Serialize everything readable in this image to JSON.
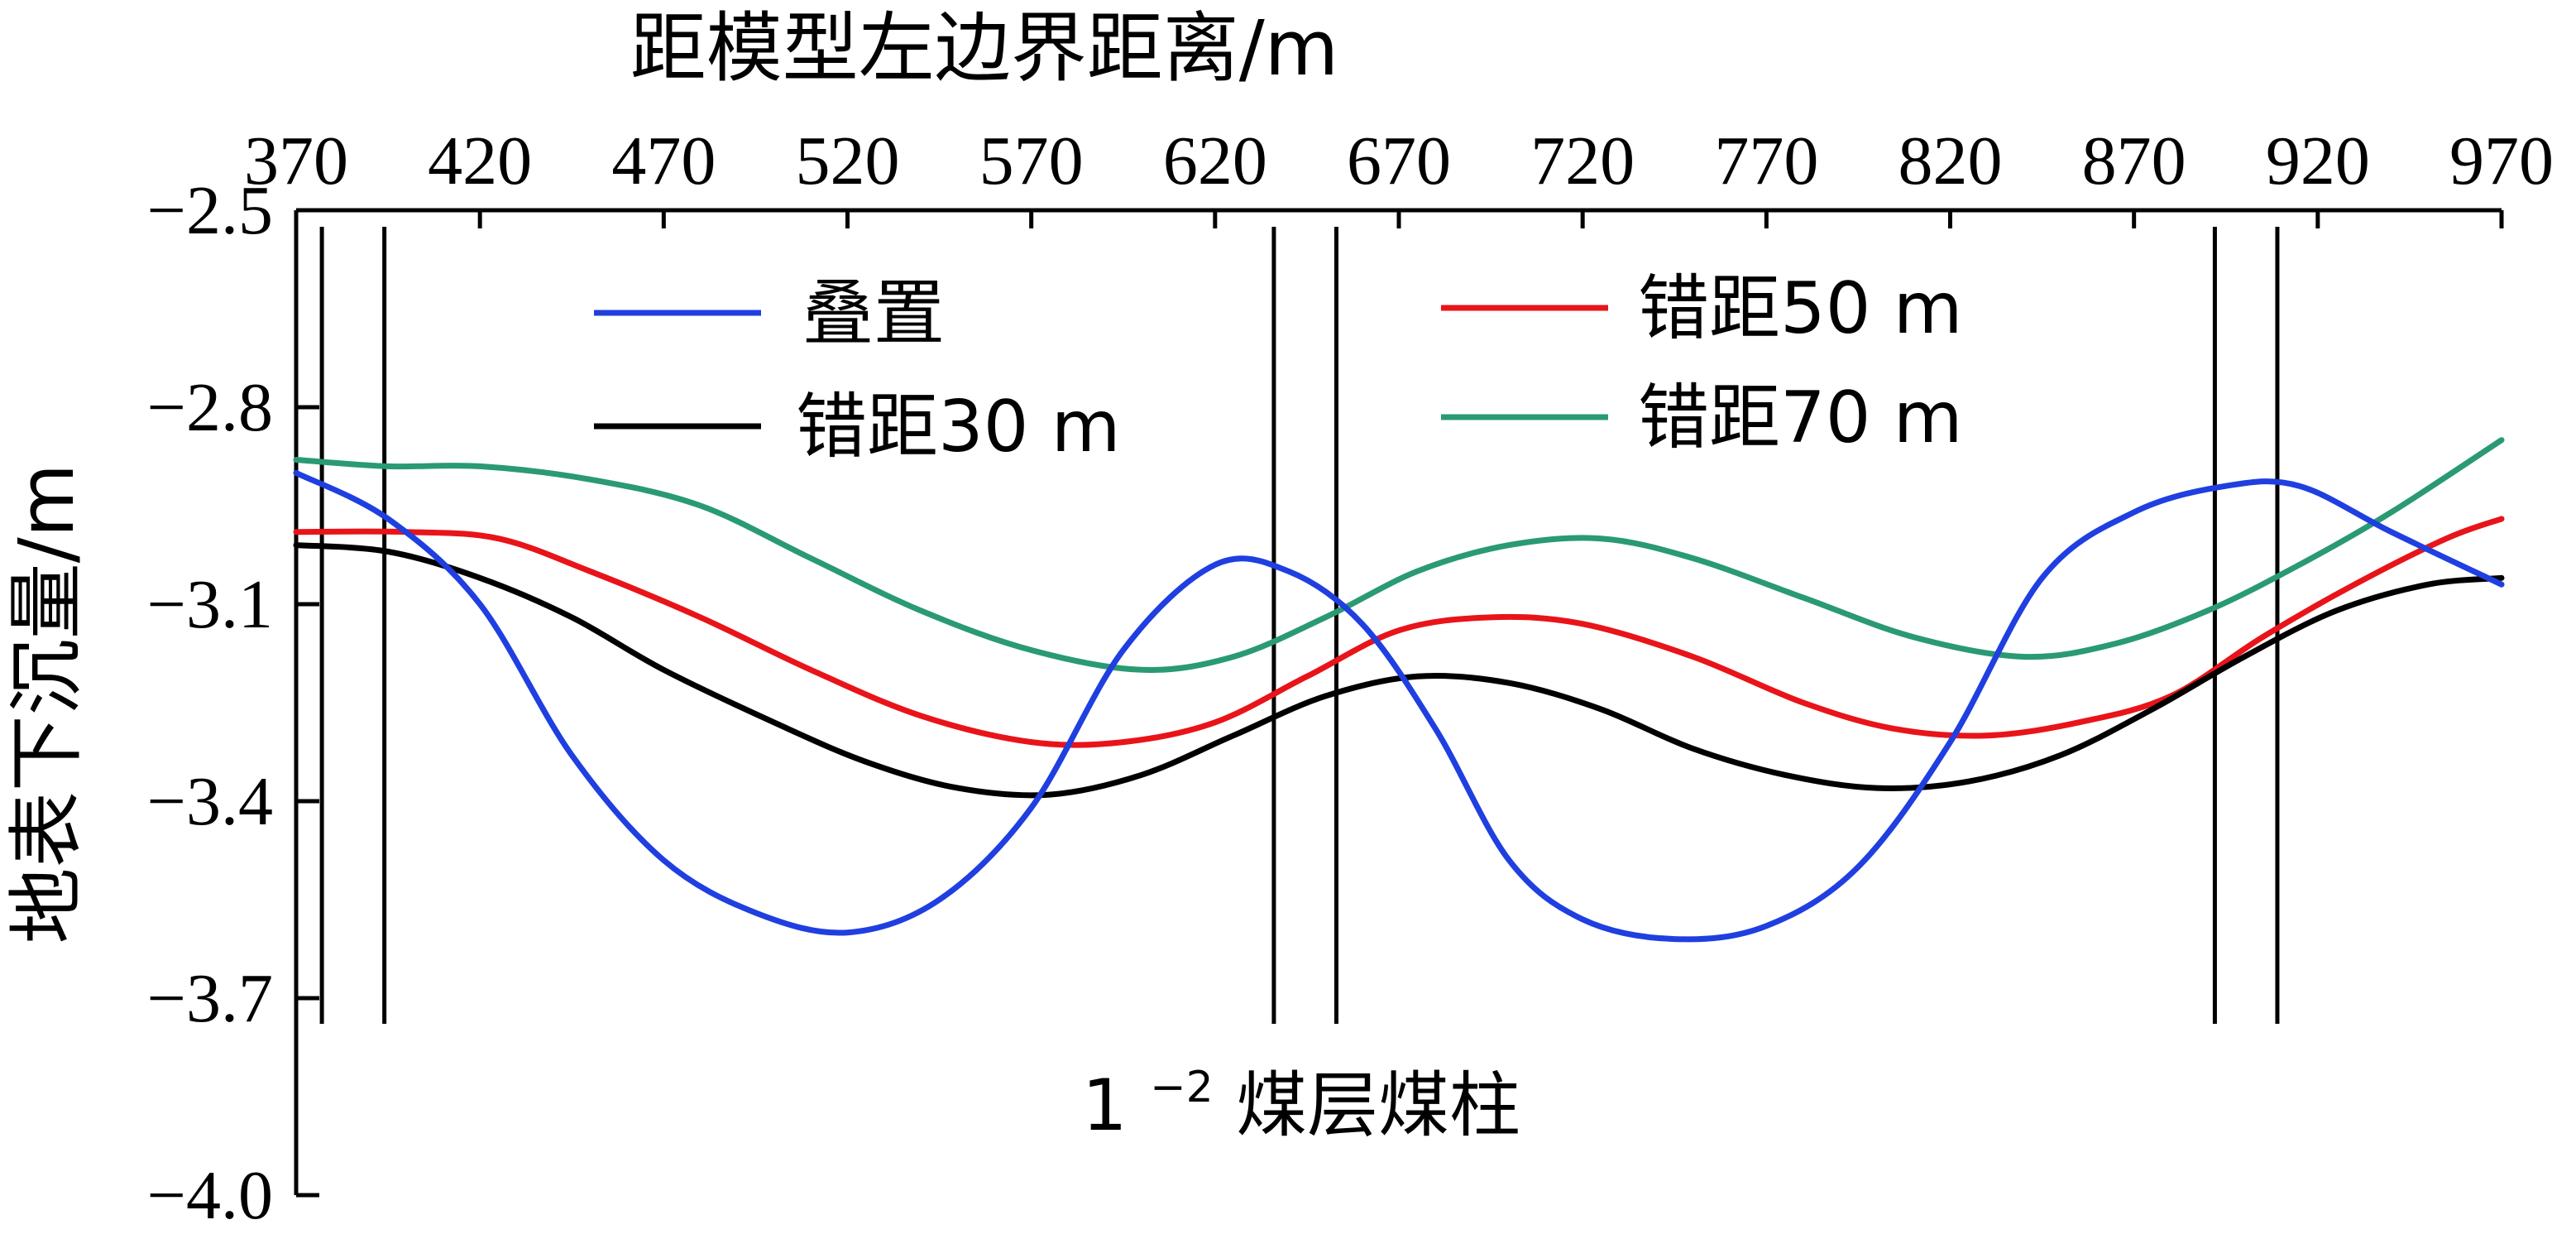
{
  "chart_data": {
    "type": "line",
    "xlabel": "距模型左边界距离/m",
    "ylabel": "地表下沉量/m",
    "xlim": [
      370,
      970
    ],
    "ylim": [
      -4.0,
      -2.5
    ],
    "x_ticks": [
      370,
      420,
      470,
      520,
      570,
      620,
      670,
      720,
      770,
      820,
      870,
      920,
      970
    ],
    "y_ticks": [
      -2.5,
      -2.8,
      -3.1,
      -3.4,
      -3.7,
      -4.0
    ],
    "y_tick_labels": [
      "−2.5",
      "−2.8",
      "−3.1",
      "−3.4",
      "−3.7",
      "−4.0"
    ],
    "x_axis_position": "top",
    "legend_placement": "top",
    "series": [
      {
        "name": "叠置",
        "color": "#1f3fe0",
        "x": [
          370,
          395,
          420,
          445,
          470,
          495,
          520,
          545,
          570,
          595,
          620,
          640,
          660,
          680,
          700,
          720,
          745,
          770,
          795,
          820,
          845,
          870,
          895,
          915,
          940,
          970
        ],
        "y": [
          -2.9,
          -2.97,
          -3.1,
          -3.33,
          -3.49,
          -3.57,
          -3.6,
          -3.55,
          -3.41,
          -3.17,
          -3.04,
          -3.05,
          -3.13,
          -3.29,
          -3.49,
          -3.58,
          -3.61,
          -3.59,
          -3.5,
          -3.31,
          -3.06,
          -2.96,
          -2.92,
          -2.92,
          -2.99,
          -3.07
        ]
      },
      {
        "name": "错距50 m",
        "color": "#e8141a",
        "x": [
          370,
          400,
          425,
          450,
          480,
          510,
          540,
          570,
          595,
          620,
          645,
          670,
          695,
          720,
          750,
          780,
          805,
          830,
          855,
          880,
          905,
          930,
          955,
          970
        ],
        "y": [
          -2.99,
          -2.99,
          -3.0,
          -3.05,
          -3.12,
          -3.2,
          -3.27,
          -3.31,
          -3.31,
          -3.28,
          -3.21,
          -3.14,
          -3.12,
          -3.13,
          -3.18,
          -3.25,
          -3.29,
          -3.3,
          -3.28,
          -3.24,
          -3.15,
          -3.07,
          -3.0,
          -2.97
        ]
      },
      {
        "name": "错距30 m",
        "color": "#000000",
        "x": [
          370,
          395,
          420,
          445,
          470,
          500,
          525,
          550,
          575,
          600,
          625,
          650,
          675,
          700,
          725,
          750,
          775,
          800,
          825,
          850,
          875,
          900,
          925,
          950,
          970
        ],
        "y": [
          -3.01,
          -3.02,
          -3.06,
          -3.12,
          -3.2,
          -3.28,
          -3.34,
          -3.38,
          -3.39,
          -3.36,
          -3.3,
          -3.24,
          -3.21,
          -3.22,
          -3.26,
          -3.32,
          -3.36,
          -3.38,
          -3.37,
          -3.33,
          -3.26,
          -3.18,
          -3.11,
          -3.07,
          -3.06
        ]
      },
      {
        "name": "错距70 m",
        "color": "#2a9a72",
        "x": [
          370,
          395,
          420,
          450,
          480,
          510,
          540,
          570,
          600,
          625,
          650,
          675,
          700,
          725,
          750,
          780,
          810,
          840,
          865,
          890,
          915,
          940,
          970
        ],
        "y": [
          -2.88,
          -2.89,
          -2.89,
          -2.91,
          -2.95,
          -3.03,
          -3.11,
          -3.17,
          -3.2,
          -3.18,
          -3.12,
          -3.05,
          -3.01,
          -3.0,
          -3.03,
          -3.09,
          -3.15,
          -3.18,
          -3.16,
          -3.11,
          -3.04,
          -2.96,
          -2.85
        ]
      }
    ],
    "pillar_lines": [
      377,
      394,
      636,
      653,
      892,
      909
    ],
    "annotation": {
      "base": "1",
      "superscript": "−2",
      "rest": "煤层煤柱"
    }
  }
}
